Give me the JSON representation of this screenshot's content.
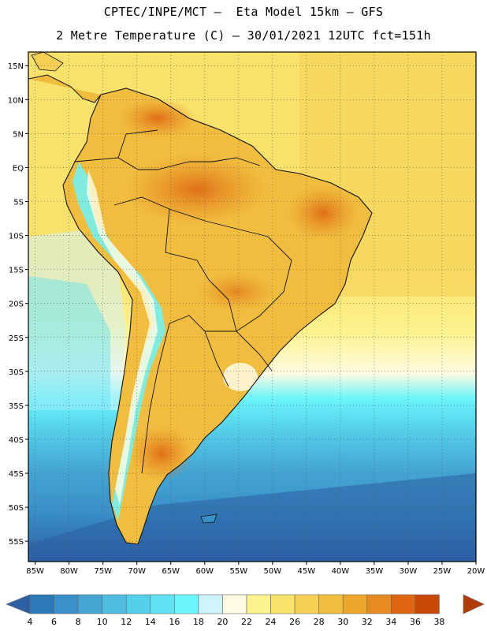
{
  "header": {
    "line1": "CPTEC/INPE/MCT –  Eta Model 15km – GFS",
    "line2": "2 Metre Temperature (C) – 30/01/2021 12UTC fct=151h"
  },
  "map": {
    "lat_labels": [
      "15N",
      "10N",
      "5N",
      "EQ",
      "5S",
      "10S",
      "15S",
      "20S",
      "25S",
      "30S",
      "35S",
      "40S",
      "45S",
      "50S",
      "55S"
    ],
    "lon_labels": [
      "85W",
      "80W",
      "75W",
      "70W",
      "65W",
      "60W",
      "55W",
      "50W",
      "45W",
      "40W",
      "35W",
      "30W",
      "25W",
      "20W"
    ],
    "lat_range": [
      -58,
      17
    ],
    "lon_range": [
      -86,
      -20
    ],
    "grid": true,
    "grid_style": "dotted"
  },
  "colorbar": {
    "values": [
      "4",
      "6",
      "8",
      "10",
      "12",
      "14",
      "16",
      "18",
      "20",
      "22",
      "24",
      "26",
      "28",
      "30",
      "32",
      "34",
      "36",
      "38"
    ],
    "colors": [
      "#2c5fa3",
      "#2f78b8",
      "#3a90c8",
      "#45a6d4",
      "#4fbde0",
      "#55d0ea",
      "#60e2f2",
      "#6cf5fb",
      "#cff3fb",
      "#fffbe2",
      "#fcf28e",
      "#f9e26c",
      "#f5d055",
      "#f1bd3e",
      "#eda82c",
      "#e68a22",
      "#dd6612",
      "#c84808",
      "#b03b06"
    ]
  },
  "colors": {
    "ocean_cold": "#2c5fa3",
    "ocean_cool": "#45a6d4",
    "ocean_mild": "#60e2f2",
    "ocean_warm": "#f9e26c",
    "land_warm": "#f1bd3e",
    "land_hot": "#dd6612",
    "andes": "#6cf5fb"
  }
}
